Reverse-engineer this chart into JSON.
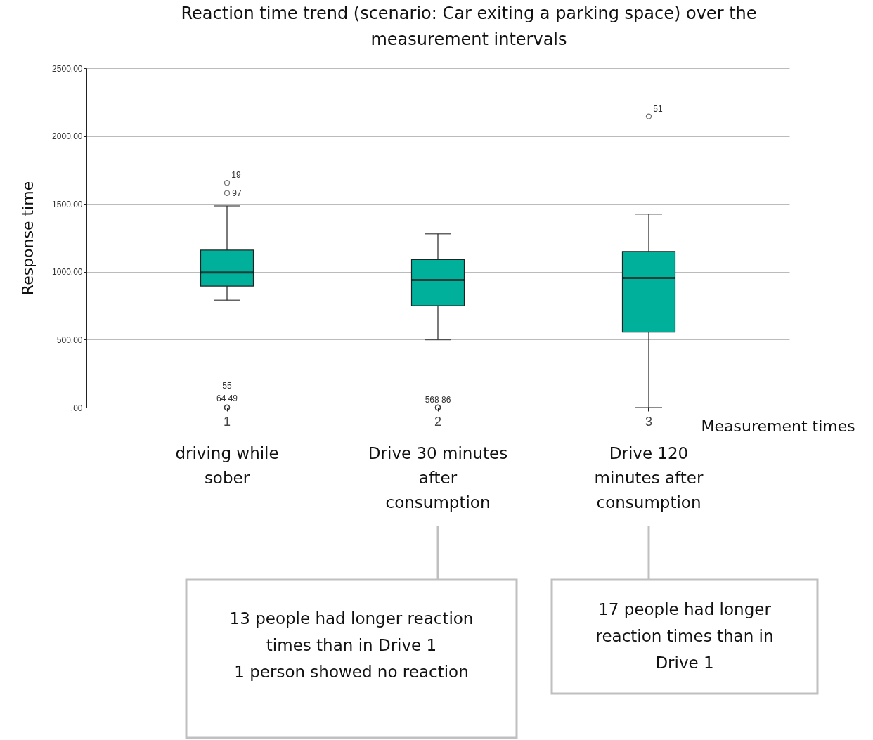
{
  "chart_data": {
    "type": "box",
    "title": "Reaction time trend (scenario: Car exiting a parking space) over the measurement intervals",
    "xlabel": "Measurement times",
    "ylabel": "Response time",
    "categories": [
      "1",
      "2",
      "3"
    ],
    "series": [
      {
        "color": "#00b09b",
        "boxes": [
          {
            "low": 790,
            "q1": 895,
            "median": 995,
            "q3": 1160,
            "high": 1485,
            "outliers": [
              1655,
              1580,
              0,
              0,
              0
            ]
          },
          {
            "low": 500,
            "q1": 750,
            "median": 940,
            "q3": 1090,
            "high": 1280,
            "outliers": [
              0,
              0,
              0
            ]
          },
          {
            "low": 0,
            "q1": 555,
            "median": 955,
            "q3": 1150,
            "high": 1425,
            "outliers": [
              2145
            ]
          }
        ]
      }
    ],
    "ylim": [
      0,
      2500
    ],
    "yticks": [
      {
        "value": 0,
        "label": ",00"
      },
      {
        "value": 500,
        "label": "500,00"
      },
      {
        "value": 1000,
        "label": "1000,00"
      },
      {
        "value": 1500,
        "label": "1500,00"
      },
      {
        "value": 2000,
        "label": "2000,00"
      },
      {
        "value": 2500,
        "label": "2500,00"
      }
    ],
    "grid": "y",
    "annotations": [
      "19",
      "97",
      "55",
      "64   49",
      "568 86",
      "51",
      "driving while sober",
      "Drive 30 minutes after consumption",
      "Drive 120 minutes after consumption",
      "13 people had longer reaction times than in Drive 1\n\n1 person showed no reaction",
      "17 people had longer reaction times than in Drive 1"
    ]
  }
}
